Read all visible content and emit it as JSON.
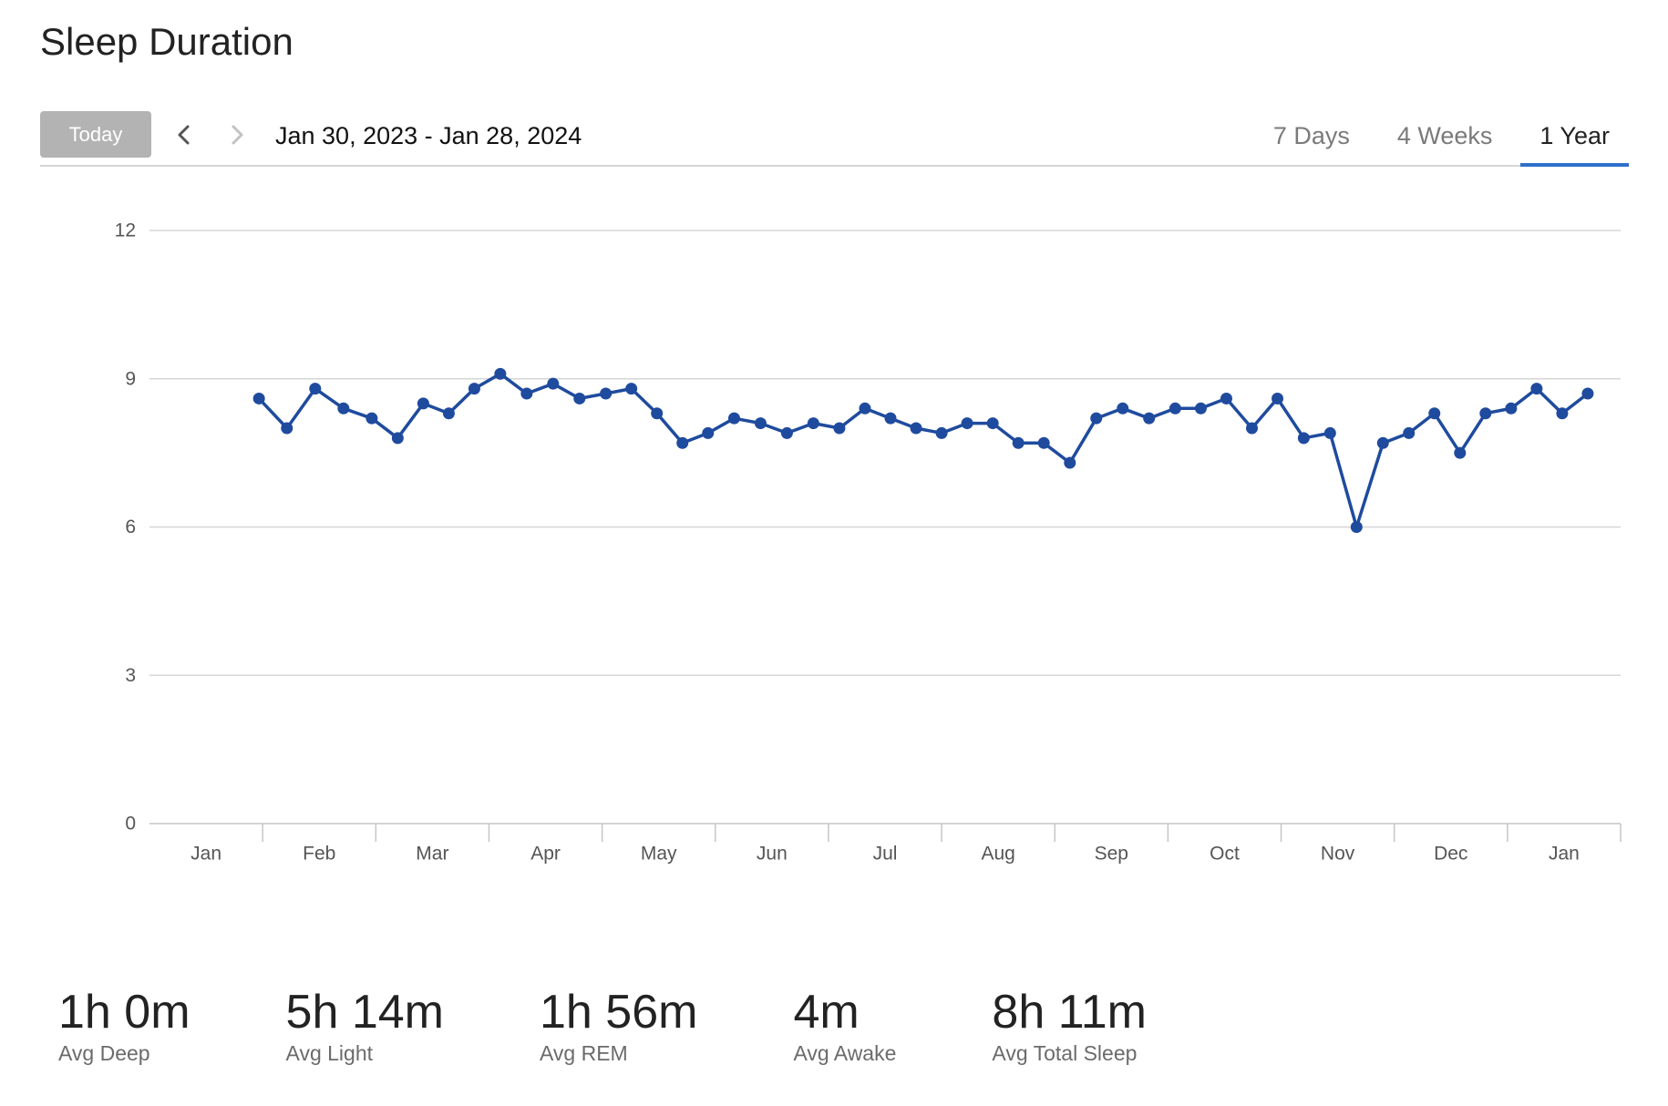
{
  "toolbar": {
    "today_label": "Today",
    "prev_icon": "chevron-left-icon",
    "next_icon": "chevron-right-icon",
    "date_range": "Jan 30, 2023 - Jan 28, 2024",
    "tabs": [
      {
        "label": "7 Days",
        "active": false
      },
      {
        "label": "4 Weeks",
        "active": false
      },
      {
        "label": "1 Year",
        "active": true
      }
    ]
  },
  "colors": {
    "accent": "#2f6fca",
    "series": "#1f4b9e",
    "grid": "#d6d6d6",
    "axis": "#c6c6c6",
    "today_button": "#b3b3b3"
  },
  "chart_data": {
    "type": "line",
    "title": "Sleep Duration",
    "xlabel": "",
    "ylabel": "",
    "xlim": [
      "2023-01-01",
      "2024-01-31"
    ],
    "ylim": [
      0,
      12
    ],
    "yticks": [
      0,
      3,
      6,
      9,
      12
    ],
    "x_axis": {
      "type": "date",
      "tick_labels": [
        "Jan",
        "Feb",
        "Mar",
        "Apr",
        "May",
        "Jun",
        "Jul",
        "Aug",
        "Sep",
        "Oct",
        "Nov",
        "Dec",
        "Jan"
      ]
    },
    "grid": true,
    "legend": "none",
    "x": [
      "2023-01-30",
      "2023-02-06",
      "2023-02-13",
      "2023-02-20",
      "2023-02-27",
      "2023-03-06",
      "2023-03-13",
      "2023-03-20",
      "2023-03-27",
      "2023-04-03",
      "2023-04-10",
      "2023-04-17",
      "2023-04-24",
      "2023-05-01",
      "2023-05-08",
      "2023-05-15",
      "2023-05-22",
      "2023-05-29",
      "2023-06-05",
      "2023-06-12",
      "2023-06-19",
      "2023-06-26",
      "2023-07-03",
      "2023-07-10",
      "2023-07-17",
      "2023-07-24",
      "2023-07-31",
      "2023-08-07",
      "2023-08-14",
      "2023-08-21",
      "2023-08-28",
      "2023-09-04",
      "2023-09-11",
      "2023-09-18",
      "2023-09-25",
      "2023-10-02",
      "2023-10-09",
      "2023-10-16",
      "2023-10-23",
      "2023-10-30",
      "2023-11-06",
      "2023-11-13",
      "2023-11-20",
      "2023-11-27",
      "2023-12-04",
      "2023-12-11",
      "2023-12-18",
      "2023-12-25",
      "2024-01-01",
      "2024-01-08",
      "2024-01-15",
      "2024-01-22"
    ],
    "series": [
      {
        "values": [
          8.6,
          8.0,
          8.8,
          8.4,
          8.2,
          7.8,
          8.5,
          8.3,
          8.8,
          9.1,
          8.7,
          8.9,
          8.6,
          8.7,
          8.8,
          8.3,
          7.7,
          7.9,
          8.2,
          8.1,
          7.9,
          8.1,
          8.0,
          8.4,
          8.2,
          8.0,
          7.9,
          8.1,
          8.1,
          7.7,
          7.7,
          7.3,
          8.2,
          8.4,
          8.2,
          8.4,
          8.4,
          8.6,
          8.0,
          8.6,
          7.8,
          7.9,
          6.0,
          7.7,
          7.9,
          8.3,
          7.5,
          8.3,
          8.4,
          8.8,
          8.3,
          8.7
        ]
      }
    ]
  },
  "stats": [
    {
      "value": "1h 0m",
      "label": "Avg Deep"
    },
    {
      "value": "5h 14m",
      "label": "Avg Light"
    },
    {
      "value": "1h 56m",
      "label": "Avg REM"
    },
    {
      "value": "4m",
      "label": "Avg Awake"
    },
    {
      "value": "8h 11m",
      "label": "Avg Total Sleep"
    }
  ]
}
